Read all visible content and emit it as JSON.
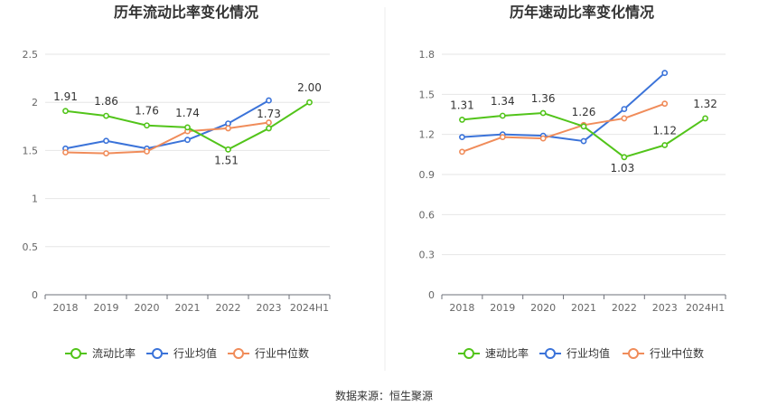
{
  "source_text": "数据来源：恒生聚源",
  "legend_marker_style": "hollow-circle",
  "chart_data": [
    {
      "type": "line",
      "title": "历年流动比率变化情况",
      "categories": [
        "2018",
        "2019",
        "2020",
        "2021",
        "2022",
        "2023",
        "2024H1"
      ],
      "ylim": [
        0,
        2.5
      ],
      "yticks": [
        0,
        0.5,
        1,
        1.5,
        2,
        2.5
      ],
      "ytick_labels": [
        "0",
        "0.5",
        "1",
        "1.5",
        "2",
        "2.5"
      ],
      "grid": true,
      "legend_position": "bottom-center",
      "series": [
        {
          "name": "流动比率",
          "color": "#52c41a",
          "values": [
            1.91,
            1.86,
            1.76,
            1.74,
            1.51,
            1.73,
            2.0
          ],
          "labels": [
            "1.91",
            "1.86",
            "1.76",
            "1.74",
            "1.51",
            "1.73",
            "2.00"
          ]
        },
        {
          "name": "行业均值",
          "color": "#3b73d9",
          "values": [
            1.52,
            1.6,
            1.52,
            1.61,
            1.78,
            2.02,
            null
          ]
        },
        {
          "name": "行业中位数",
          "color": "#f08c5a",
          "values": [
            1.48,
            1.47,
            1.49,
            1.7,
            1.73,
            1.79,
            null
          ]
        }
      ]
    },
    {
      "type": "line",
      "title": "历年速动比率变化情况",
      "categories": [
        "2018",
        "2019",
        "2020",
        "2021",
        "2022",
        "2023",
        "2024H1"
      ],
      "ylim": [
        0,
        1.8
      ],
      "yticks": [
        0,
        0.3,
        0.6,
        0.9,
        1.2,
        1.5,
        1.8
      ],
      "ytick_labels": [
        "0",
        "0.3",
        "0.6",
        "0.9",
        "1.2",
        "1.5",
        "1.8"
      ],
      "grid": true,
      "legend_position": "bottom-center",
      "series": [
        {
          "name": "速动比率",
          "color": "#52c41a",
          "values": [
            1.31,
            1.34,
            1.36,
            1.26,
            1.03,
            1.12,
            1.32
          ],
          "labels": [
            "1.31",
            "1.34",
            "1.36",
            "1.26",
            "1.03",
            "1.12",
            "1.32"
          ]
        },
        {
          "name": "行业均值",
          "color": "#3b73d9",
          "values": [
            1.18,
            1.2,
            1.19,
            1.15,
            1.39,
            1.66,
            null
          ]
        },
        {
          "name": "行业中位数",
          "color": "#f08c5a",
          "values": [
            1.07,
            1.18,
            1.17,
            1.27,
            1.32,
            1.43,
            null
          ]
        }
      ]
    }
  ]
}
